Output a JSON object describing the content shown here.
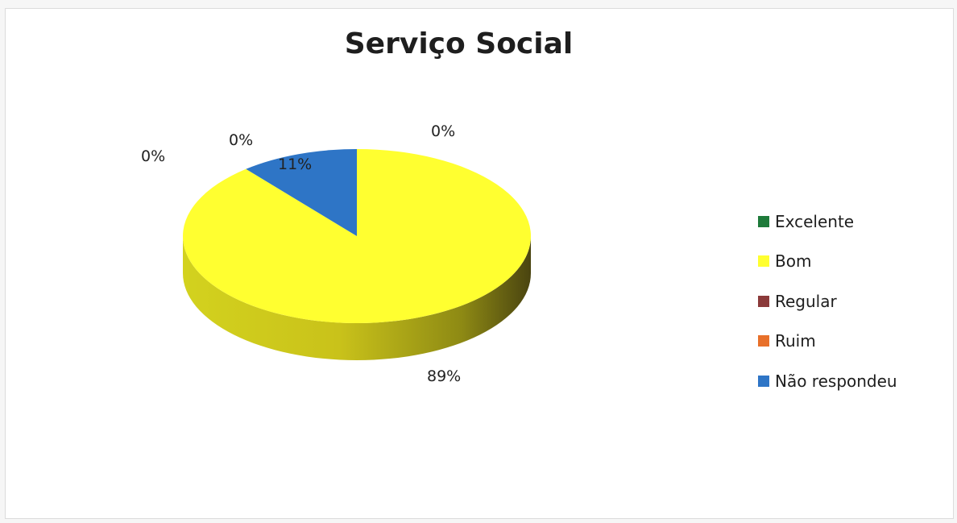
{
  "chart_data": {
    "type": "pie",
    "title": "Serviço Social",
    "categories": [
      "Excelente",
      "Bom",
      "Regular",
      "Ruim",
      "Não respondeu"
    ],
    "values": [
      0,
      89,
      0,
      0,
      11
    ],
    "data_labels": [
      "0%",
      "89%",
      "0%",
      "0%",
      "11%"
    ],
    "colors": [
      "#1e7a3a",
      "#ffff30",
      "#8b3a3a",
      "#e8702a",
      "#2e75c6"
    ],
    "style": "3d-pie",
    "legend_position": "right"
  }
}
